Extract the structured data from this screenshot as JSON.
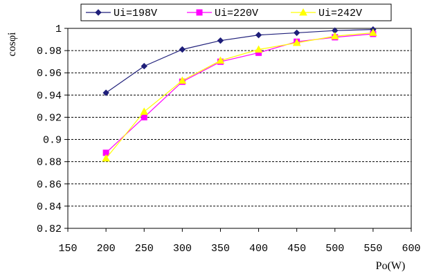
{
  "chart_data": {
    "type": "line",
    "title": "",
    "xlabel": "Po(W)",
    "ylabel": "cosφi",
    "xlim": [
      150,
      600
    ],
    "ylim": [
      0.82,
      1
    ],
    "x_ticks": [
      "150",
      "200",
      "250",
      "300",
      "350",
      "400",
      "450",
      "500",
      "550",
      "600"
    ],
    "y_ticks": [
      "0.82",
      "0.84",
      "0.86",
      "0.88",
      "0.9",
      "0.92",
      "0.94",
      "0.96",
      "0.98",
      "1"
    ],
    "grid": "horizontal dashed",
    "legend_position": "top",
    "x": [
      200,
      250,
      300,
      350,
      400,
      450,
      500,
      550
    ],
    "series": [
      {
        "name": "Ui=198V",
        "color": "#1f1f7a",
        "marker": "diamond",
        "values": [
          0.942,
          0.966,
          0.981,
          0.989,
          0.994,
          0.996,
          0.998,
          0.999
        ]
      },
      {
        "name": "Ui=220V",
        "color": "#ff00ff",
        "marker": "square",
        "values": [
          0.888,
          0.92,
          0.952,
          0.97,
          0.978,
          0.988,
          0.992,
          0.995
        ]
      },
      {
        "name": "Ui=242V",
        "color": "#ffff00",
        "marker": "triangle",
        "values": [
          0.883,
          0.925,
          0.953,
          0.971,
          0.981,
          0.987,
          0.993,
          0.996
        ]
      }
    ]
  }
}
